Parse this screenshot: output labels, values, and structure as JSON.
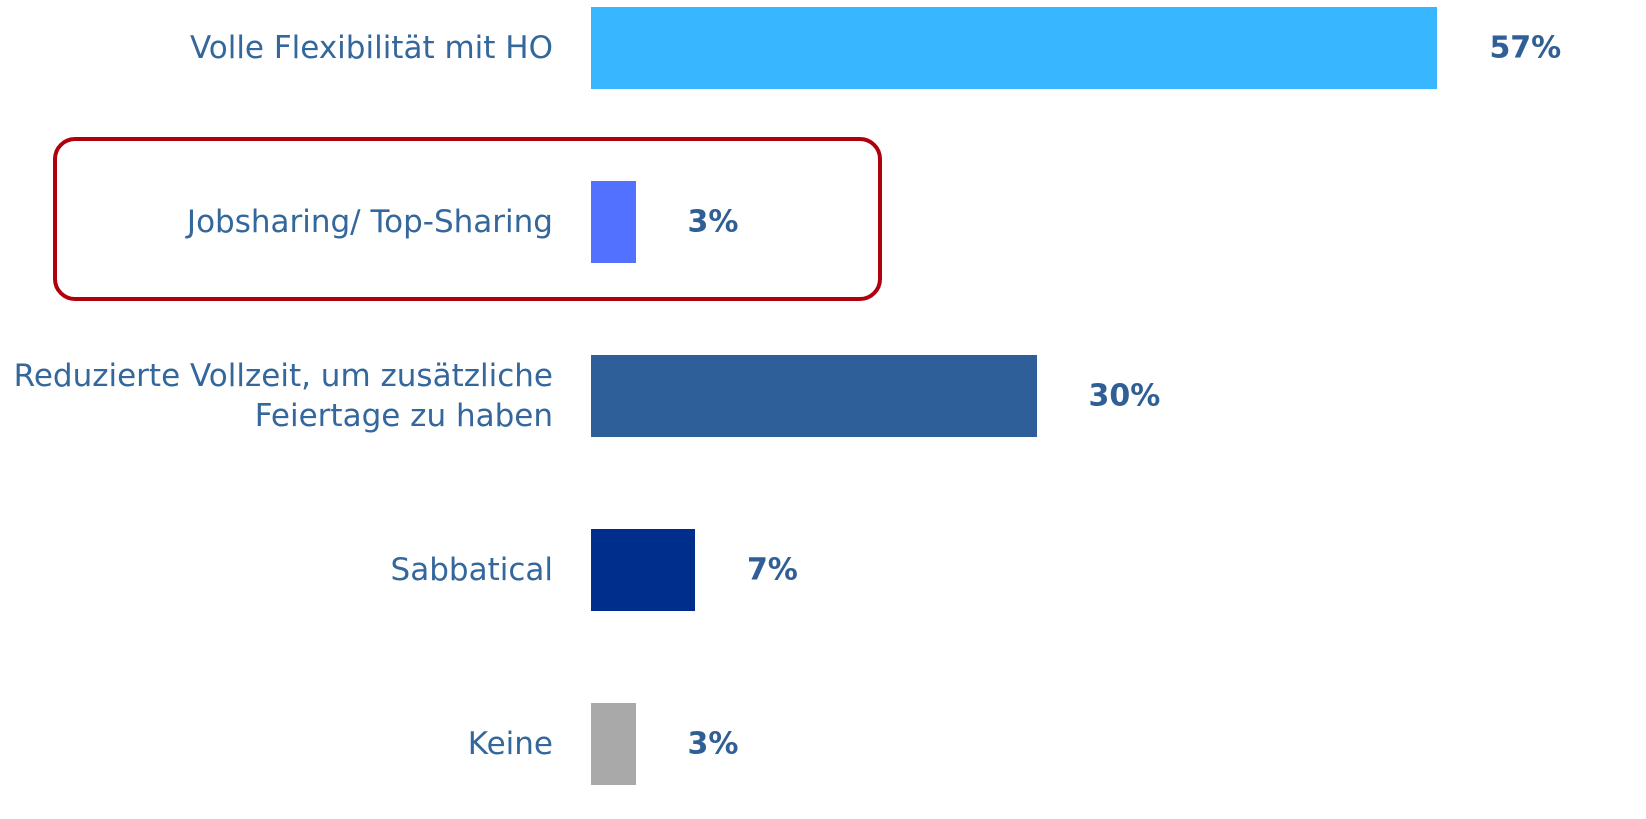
{
  "chart_data": {
    "type": "bar",
    "orientation": "horizontal",
    "categories": [
      "Volle Flexibilität mit HO",
      "Jobsharing/ Top-Sharing",
      "Reduzierte Vollzeit, um zusätzliche Feiertage zu haben",
      "Sabbatical",
      "Keine"
    ],
    "values": [
      57,
      3,
      30,
      7,
      3
    ],
    "value_labels": [
      "57%",
      "3%",
      "30%",
      "7%",
      "3%"
    ],
    "colors": [
      "#38b6ff",
      "#5271ff",
      "#2e5f98",
      "#002e8c",
      "#a9a9a9"
    ]
  }
}
